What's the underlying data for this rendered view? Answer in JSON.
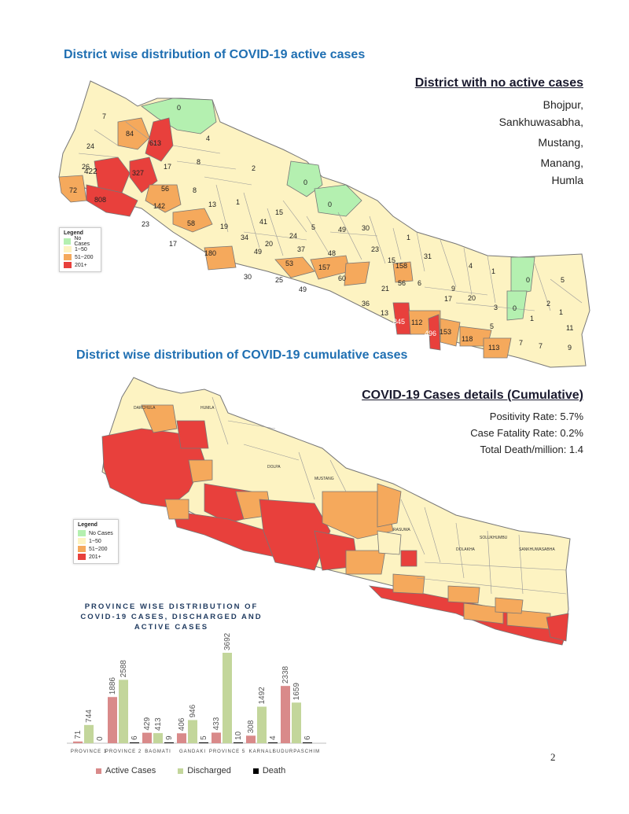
{
  "page": {
    "number": "2"
  },
  "active_map": {
    "title": "District wise distribution of COVID-19 active cases",
    "side_heading": "District with no active cases",
    "side_lines": [
      "Bhojpur,",
      "Sankhuwasabha,",
      "Mustang,",
      "Manang,",
      "Humla"
    ],
    "legend": {
      "title": "Legend",
      "items": [
        "No Cases",
        "1~50",
        "51~200",
        "201+"
      ]
    },
    "labels": [
      "0",
      "7",
      "84",
      "613",
      "24",
      "4",
      "26",
      "8",
      "422",
      "327",
      "17",
      "2",
      "72",
      "56",
      "808",
      "8",
      "0",
      "142",
      "13",
      "1",
      "0",
      "23",
      "15",
      "58",
      "41",
      "19",
      "5",
      "49",
      "30",
      "34",
      "24",
      "17",
      "20",
      "180",
      "49",
      "37",
      "1",
      "23",
      "31",
      "48",
      "15",
      "158",
      "4",
      "1",
      "53",
      "157",
      "0",
      "5",
      "30",
      "60",
      "25",
      "56",
      "6",
      "49",
      "21",
      "9",
      "17",
      "20",
      "36",
      "3",
      "2",
      "13",
      "845",
      "112",
      "0",
      "1",
      "5",
      "153",
      "1",
      "11",
      "496",
      "118",
      "113",
      "7",
      "7",
      "9"
    ],
    "colors": {
      "no_cases": "#b4f0b0",
      "low": "#fdf3c2",
      "mid": "#f5a95c",
      "high": "#e8403c"
    }
  },
  "cumulative_map": {
    "title": "District wise distribution of COVID-19 cumulative cases",
    "side_heading": "COVID-19 Cases details (Cumulative)",
    "side_lines": [
      "Positivity Rate: 5.7%",
      "Case Fatality Rate: 0.2%",
      "Total Death/million: 1.4"
    ],
    "legend": {
      "title": "Legend",
      "items": [
        "No Cases",
        "1~50",
        "51~200",
        "201+"
      ]
    }
  },
  "chart_title": "PROVINCE WISE DISTRIBUTION OF COVID-19 CASES, DISCHARGED AND ACTIVE CASES",
  "chart_data": {
    "type": "bar",
    "categories": [
      "PROVINCE 1",
      "PROVINCE 2",
      "BAGMATI",
      "GANDAKI",
      "PROVINCE 5",
      "KARNALI",
      "SUDURPASCHIM"
    ],
    "category_labels_printed": [
      "PROVINCE 1",
      "PROVINCE 2",
      "BAGMATI",
      "GANDAKI",
      "PROVINCE 5",
      "KARNALI",
      "SUDURPASCHIM"
    ],
    "series": [
      {
        "name": "Active Cases",
        "color": "#d98a8a",
        "values": [
          71,
          1886,
          429,
          406,
          433,
          308,
          2338
        ]
      },
      {
        "name": "Discharged",
        "color": "#c3d69b",
        "values": [
          744,
          2588,
          413,
          946,
          3692,
          1492,
          1659
        ]
      },
      {
        "name": "Death",
        "color": "#000000",
        "values": [
          0,
          6,
          9,
          5,
          10,
          4,
          6
        ]
      }
    ],
    "title": "PROVINCE WISE DISTRIBUTION OF COVID-19 CASES, DISCHARGED AND ACTIVE CASES",
    "xlabel": "",
    "ylabel": "",
    "ylim": [
      0,
      3692
    ],
    "grid": false,
    "legend_position": "bottom"
  }
}
